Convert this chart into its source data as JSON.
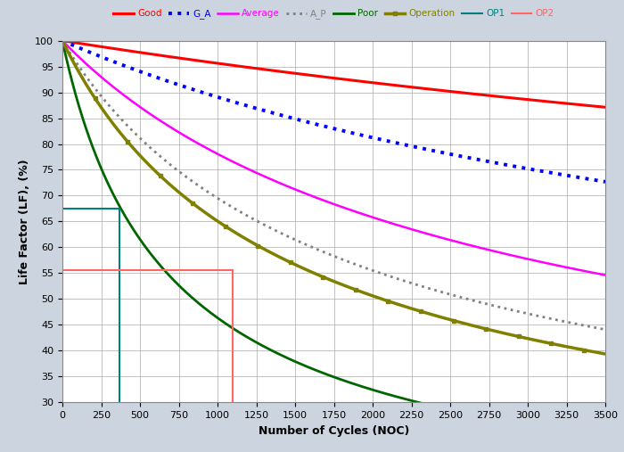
{
  "xlabel": "Number of Cycles (NOC)",
  "ylabel": "Life Factor (LF), (%)",
  "xlim": [
    0,
    3500
  ],
  "ylim": [
    30,
    100
  ],
  "xticks": [
    0,
    250,
    500,
    750,
    1000,
    1250,
    1500,
    1750,
    2000,
    2250,
    2500,
    2750,
    3000,
    3250,
    3500
  ],
  "yticks": [
    30,
    35,
    40,
    45,
    50,
    55,
    60,
    65,
    70,
    75,
    80,
    85,
    90,
    95,
    100
  ],
  "background_color": "#ccd4e0",
  "plot_bg_color": "#ffffff",
  "curves": {
    "Good": {
      "K": 8000,
      "alpha": 0.38,
      "color": "#ff0000",
      "ls": "-",
      "lw": 2.2,
      "marker": null,
      "ms": 4
    },
    "G_A": {
      "K": 3500,
      "alpha": 0.46,
      "color": "#0000ff",
      "ls": ":",
      "lw": 2.8,
      "marker": null,
      "ms": 4
    },
    "Average": {
      "K": 1800,
      "alpha": 0.56,
      "color": "#ff00ff",
      "ls": "-",
      "lw": 1.8,
      "marker": null,
      "ms": 4
    },
    "A_P": {
      "K": 1200,
      "alpha": 0.6,
      "color": "#808080",
      "ls": ":",
      "lw": 2.0,
      "marker": null,
      "ms": 4
    },
    "Poor": {
      "K": 500,
      "alpha": 0.7,
      "color": "#006600",
      "ls": "-",
      "lw": 2.0,
      "marker": null,
      "ms": 4
    },
    "Operation": {
      "K": 1000,
      "alpha": 0.62,
      "color": "#808000",
      "ls": "-",
      "lw": 2.5,
      "marker": "s",
      "ms": 3.5
    }
  },
  "op1_x": 365,
  "op1_lf": 67.5,
  "op2_x": 1095,
  "op2_lf": 55.6,
  "op1_color": "#008080",
  "op2_color": "#ff6666",
  "legend_colors": {
    "Good": "#ff0000",
    "G_A": "#0000ff",
    "Average": "#ff00ff",
    "A_P": "#808080",
    "Poor": "#006600",
    "Operation": "#808000",
    "OP1": "#008080",
    "OP2": "#ff6666"
  }
}
